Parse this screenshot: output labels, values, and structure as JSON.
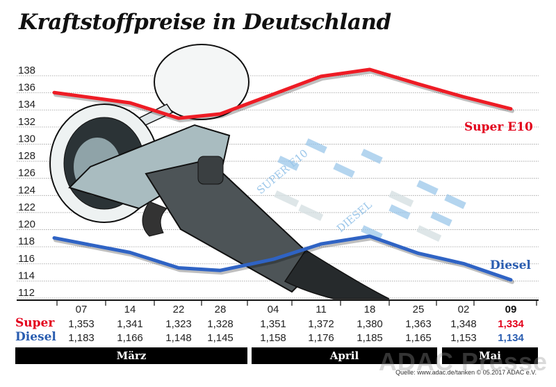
{
  "chart_data": {
    "type": "line",
    "title": "Kraftstoffpreise in Deutschland",
    "x": [
      "07",
      "14",
      "22",
      "28",
      "04",
      "11",
      "18",
      "25",
      "02",
      "09"
    ],
    "months": [
      "März",
      "April",
      "Mai"
    ],
    "month_spans": [
      [
        0,
        3
      ],
      [
        4,
        7
      ],
      [
        8,
        9
      ]
    ],
    "ylim": [
      112,
      138
    ],
    "yticks": [
      112,
      114,
      116,
      118,
      120,
      122,
      124,
      126,
      128,
      130,
      132,
      134,
      136,
      138
    ],
    "grid": true,
    "series": [
      {
        "name": "Super E10",
        "row_label": "Super",
        "color": "#e3001b",
        "values": [
          135.3,
          134.1,
          132.3,
          132.8,
          135.1,
          137.2,
          138.0,
          136.3,
          134.8,
          133.4
        ],
        "table": [
          "1,353",
          "1,341",
          "1,323",
          "1,328",
          "1,351",
          "1,372",
          "1,380",
          "1,363",
          "1,348",
          "1,334"
        ]
      },
      {
        "name": "Diesel",
        "row_label": "Diesel",
        "color": "#2a5db0",
        "values": [
          118.3,
          116.6,
          114.8,
          114.5,
          115.8,
          117.6,
          118.5,
          116.5,
          115.3,
          113.4
        ],
        "table": [
          "1,183",
          "1,166",
          "1,148",
          "1,145",
          "1,158",
          "1,176",
          "1,185",
          "1,165",
          "1,153",
          "1,134"
        ]
      }
    ],
    "line_colors": {
      "super": "#ee1c25",
      "diesel": "#2f63c4"
    }
  },
  "illustration": {
    "label_super": "SUPER E10",
    "label_diesel": "DIESEL"
  },
  "source": "Quelle: www.adac.de/tanken   © 05.2017  ADAC e.V.",
  "watermark": "ADAC Presse"
}
